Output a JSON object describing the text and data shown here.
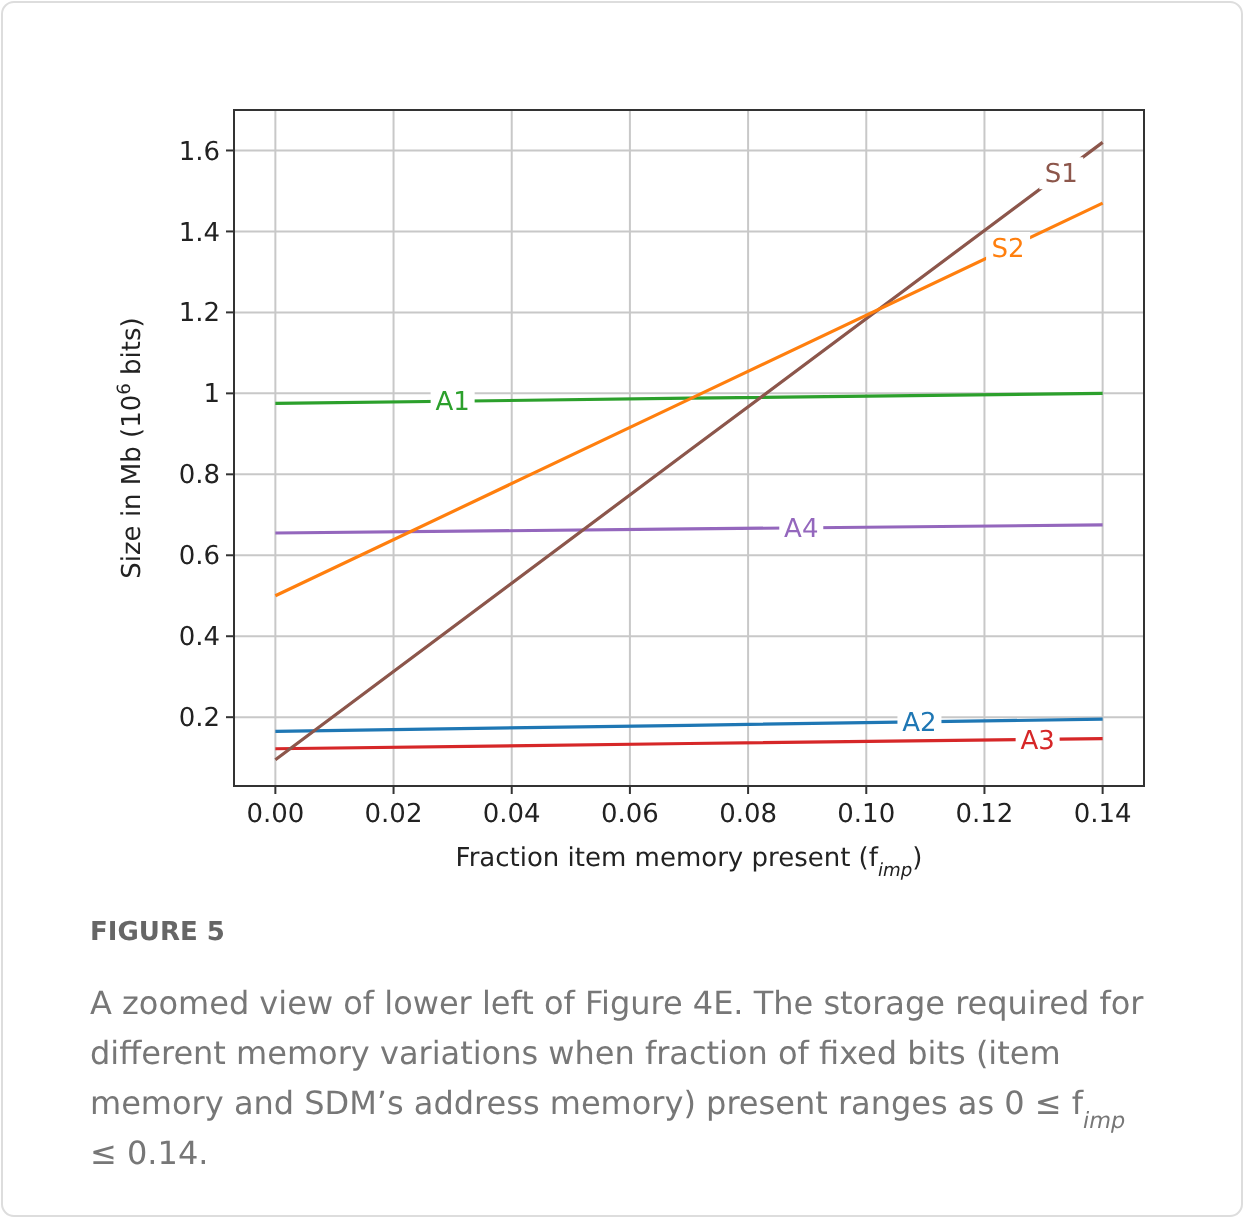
{
  "chart_data": {
    "type": "line",
    "xlabel": "Fraction item memory present (f$_{imp}$)",
    "ylabel": "Size in Mb (10$^{6}$ bits)",
    "x": [
      0,
      0.07,
      0.14
    ],
    "series": [
      {
        "name": "A1",
        "color": "#2ca02c",
        "values": [
          0.975,
          0.988,
          1.0
        ]
      },
      {
        "name": "A2",
        "color": "#1f77b4",
        "values": [
          0.165,
          0.18,
          0.195
        ]
      },
      {
        "name": "A3",
        "color": "#d62728",
        "values": [
          0.122,
          0.135,
          0.147
        ]
      },
      {
        "name": "A4",
        "color": "#9467bd",
        "values": [
          0.655,
          0.665,
          0.675
        ]
      },
      {
        "name": "S1",
        "color": "#8c564b",
        "values": [
          0.095,
          0.858,
          1.62
        ]
      },
      {
        "name": "S2",
        "color": "#ff7f0e",
        "values": [
          0.5,
          0.985,
          1.47
        ]
      }
    ],
    "xlim": [
      -0.007,
      0.147
    ],
    "ylim": [
      0.03,
      1.7
    ],
    "xticks": [
      {
        "value": 0,
        "label": "0.00"
      },
      {
        "value": 0.02,
        "label": "0.02"
      },
      {
        "value": 0.04,
        "label": "0.04"
      },
      {
        "value": 0.06,
        "label": "0.06"
      },
      {
        "value": 0.08,
        "label": "0.08"
      },
      {
        "value": 0.1,
        "label": "0.10"
      },
      {
        "value": 0.12,
        "label": "0.12"
      },
      {
        "value": 0.14,
        "label": "0.14"
      }
    ],
    "yticks": [
      0.2,
      0.4,
      0.6,
      0.8,
      1,
      1.2,
      1.4,
      1.6
    ],
    "grid": true,
    "marker": "none",
    "line_style": "solid",
    "annotations": [
      "FIGURE 5",
      "A zoomed view of lower left of Figure 4E. The storage required for different memory variations when fraction of fixed bits (item memory and SDM’s address memory) present ranges as 0 ≤ f$_{imp}$ ≤ 0.14."
    ]
  }
}
